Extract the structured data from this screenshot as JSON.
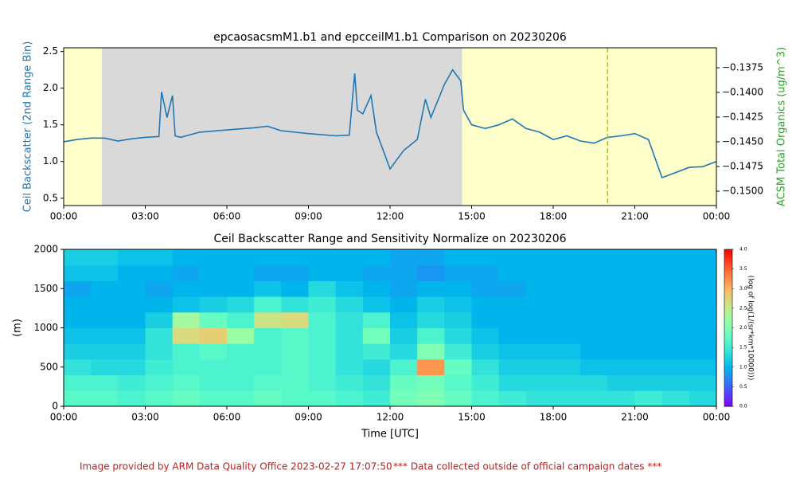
{
  "chart_data": [
    {
      "type": "line",
      "title": "epcaosacsmM1.b1 and epcceilM1.b1 Comparison on 20230206",
      "ylabel": "Ceil Backscatter (2nd Range Bin)",
      "ylabel_color": "#1f77b4",
      "y2label": "ACSM Total Organics (ug/m^3)",
      "y2label_color": "#2ca02c",
      "xlim": [
        0,
        24
      ],
      "xticks": [
        {
          "value": 0,
          "label": "00:00"
        },
        {
          "value": 3,
          "label": "03:00"
        },
        {
          "value": 6,
          "label": "06:00"
        },
        {
          "value": 9,
          "label": "09:00"
        },
        {
          "value": 12,
          "label": "12:00"
        },
        {
          "value": 15,
          "label": "15:00"
        },
        {
          "value": 18,
          "label": "18:00"
        },
        {
          "value": 21,
          "label": "21:00"
        },
        {
          "value": 24,
          "label": "00:00"
        }
      ],
      "ylim": [
        0.4,
        2.55
      ],
      "yticks": [
        0.5,
        {
          "value": 1,
          "label": "1.0"
        },
        1.5,
        {
          "value": 2,
          "label": "2.0"
        },
        2.5
      ],
      "y2lim": [
        -0.15145,
        -0.13548
      ],
      "y2ticks": [
        {
          "value": -0.1375,
          "label": "−0.1375"
        },
        {
          "value": -0.14,
          "label": "−0.1400"
        },
        {
          "value": -0.1425,
          "label": "−0.1425"
        },
        {
          "value": -0.145,
          "label": "−0.1450"
        },
        {
          "value": -0.1475,
          "label": "−0.1475"
        },
        {
          "value": -0.15,
          "label": "−0.1500"
        }
      ],
      "regions": [
        {
          "start": 0,
          "end": 1.4,
          "color": "#ffffcc"
        },
        {
          "start": 1.4,
          "end": 14.65,
          "color": "#d9d9d9"
        },
        {
          "start": 14.65,
          "end": 24,
          "color": "#ffffcc"
        }
      ],
      "vline": {
        "x": 20,
        "color": "#bfbf00"
      },
      "x": [
        0,
        0.5,
        1,
        1.5,
        2,
        2.5,
        3,
        3.5,
        3.6,
        3.8,
        4,
        4.1,
        4.3,
        5,
        6,
        7,
        7.5,
        8,
        9,
        10,
        10.5,
        10.7,
        10.8,
        11,
        11.3,
        11.5,
        11.8,
        12,
        12.5,
        13,
        13.3,
        13.5,
        14,
        14.3,
        14.6,
        14.7,
        15,
        15.5,
        16,
        16.5,
        17,
        17.5,
        18,
        18.5,
        19,
        19.5,
        20,
        20.5,
        21,
        21.5,
        22,
        22.5,
        23,
        23.5,
        24
      ],
      "series": [
        {
          "color": "#1f77b4",
          "values": [
            1.27,
            1.3,
            1.32,
            1.32,
            1.28,
            1.31,
            1.33,
            1.34,
            1.95,
            1.6,
            1.9,
            1.35,
            1.33,
            1.4,
            1.43,
            1.46,
            1.48,
            1.42,
            1.38,
            1.35,
            1.36,
            2.2,
            1.7,
            1.65,
            1.9,
            1.4,
            1.1,
            0.9,
            1.15,
            1.3,
            1.85,
            1.6,
            2.05,
            2.25,
            2.1,
            1.7,
            1.5,
            1.45,
            1.5,
            1.58,
            1.45,
            1.4,
            1.3,
            1.35,
            1.28,
            1.25,
            1.33,
            1.35,
            1.38,
            1.3,
            0.78,
            0.85,
            0.92,
            0.93,
            1.0
          ]
        }
      ]
    },
    {
      "type": "heatmap",
      "title": "Ceil Backscatter Range and Sensitivity Normalize on 20230206",
      "xlabel": "Time [UTC]",
      "ylabel": "(m)",
      "colorbar_label": "(log of log(1/(sr*km*10000)))",
      "xlim": [
        0,
        24
      ],
      "xticks": [
        {
          "value": 0,
          "label": "00:00"
        },
        {
          "value": 3,
          "label": "03:00"
        },
        {
          "value": 6,
          "label": "06:00"
        },
        {
          "value": 9,
          "label": "09:00"
        },
        {
          "value": 12,
          "label": "12:00"
        },
        {
          "value": 15,
          "label": "15:00"
        },
        {
          "value": 18,
          "label": "18:00"
        },
        {
          "value": 21,
          "label": "21:00"
        },
        {
          "value": 24,
          "label": "00:00"
        }
      ],
      "ylim": [
        0,
        2000
      ],
      "yticks": [
        0,
        500,
        1000,
        1500,
        2000
      ],
      "zlim": [
        0,
        4
      ],
      "colorbar_ticks": [
        {
          "value": 0,
          "label": "0.0"
        },
        0.5,
        {
          "value": 1,
          "label": "1.0"
        },
        1.5,
        {
          "value": 2,
          "label": "2.0"
        },
        2.5,
        {
          "value": 3,
          "label": "3.0"
        },
        3.5,
        {
          "value": 4,
          "label": "4.0"
        }
      ],
      "values": [
        [
          1.7,
          1.7,
          1.6,
          1.7,
          1.8,
          1.7,
          1.7,
          1.8,
          1.7,
          1.7,
          1.6,
          1.5,
          1.9,
          2.0,
          1.8,
          1.6,
          1.5,
          1.4,
          1.4,
          1.4,
          1.4,
          1.5,
          1.4,
          1.3
        ],
        [
          1.6,
          1.6,
          1.5,
          1.6,
          1.7,
          1.6,
          1.6,
          1.7,
          1.7,
          1.6,
          1.5,
          1.4,
          1.8,
          1.9,
          1.7,
          1.5,
          1.3,
          1.3,
          1.3,
          1.3,
          1.2,
          1.2,
          1.2,
          1.2
        ],
        [
          1.4,
          1.3,
          1.3,
          1.5,
          1.6,
          1.6,
          1.6,
          1.6,
          1.7,
          1.6,
          1.4,
          1.3,
          1.6,
          3.2,
          1.8,
          1.4,
          1.2,
          1.2,
          1.2,
          1.1,
          1.1,
          1.1,
          1.1,
          1.1
        ],
        [
          1.2,
          1.2,
          1.2,
          1.4,
          1.6,
          1.7,
          1.6,
          1.6,
          1.7,
          1.6,
          1.4,
          1.5,
          1.3,
          2.0,
          1.5,
          1.2,
          1.1,
          1.1,
          1.1,
          1.0,
          1.0,
          1.0,
          1.0,
          1.0
        ],
        [
          1.1,
          1.1,
          1.1,
          1.4,
          2.7,
          2.8,
          2.2,
          1.6,
          1.7,
          1.6,
          1.4,
          1.9,
          1.2,
          1.6,
          1.3,
          1.1,
          1.0,
          1.0,
          1.0,
          1.0,
          1.0,
          1.0,
          1.0,
          1.0
        ],
        [
          1.0,
          1.0,
          1.0,
          1.2,
          2.3,
          1.8,
          1.6,
          2.6,
          2.7,
          1.6,
          1.4,
          1.6,
          1.1,
          1.3,
          1.2,
          1.0,
          1.0,
          1.0,
          1.0,
          1.0,
          1.0,
          1.0,
          1.0,
          1.0
        ],
        [
          1.0,
          1.0,
          1.0,
          1.0,
          1.1,
          1.2,
          1.3,
          1.6,
          1.4,
          1.5,
          1.3,
          1.1,
          1.0,
          1.2,
          1.1,
          1.0,
          1.0,
          1.0,
          1.0,
          1.0,
          1.0,
          1.0,
          1.0,
          1.0
        ],
        [
          0.9,
          1.0,
          1.0,
          0.9,
          1.0,
          1.0,
          1.0,
          1.1,
          1.0,
          1.3,
          1.1,
          1.0,
          0.9,
          1.0,
          1.0,
          0.9,
          0.9,
          1.0,
          1.0,
          1.0,
          1.0,
          1.0,
          1.0,
          1.0
        ],
        [
          1.1,
          1.1,
          1.0,
          1.0,
          0.9,
          1.0,
          1.0,
          0.9,
          0.9,
          1.0,
          1.0,
          0.9,
          0.9,
          0.8,
          0.9,
          0.9,
          1.0,
          1.0,
          1.0,
          1.0,
          1.0,
          1.0,
          1.0,
          1.0
        ],
        [
          1.2,
          1.2,
          1.1,
          1.1,
          1.0,
          1.0,
          1.0,
          1.0,
          1.0,
          1.0,
          1.0,
          1.0,
          0.9,
          0.9,
          1.0,
          1.0,
          1.0,
          1.0,
          1.0,
          1.0,
          1.0,
          1.0,
          1.0,
          1.0
        ]
      ]
    }
  ],
  "footer": [
    "Image provided by ARM Data Quality Office 2023-02-27 17:07:50",
    "*** Data collected outside of official campaign dates ***"
  ]
}
